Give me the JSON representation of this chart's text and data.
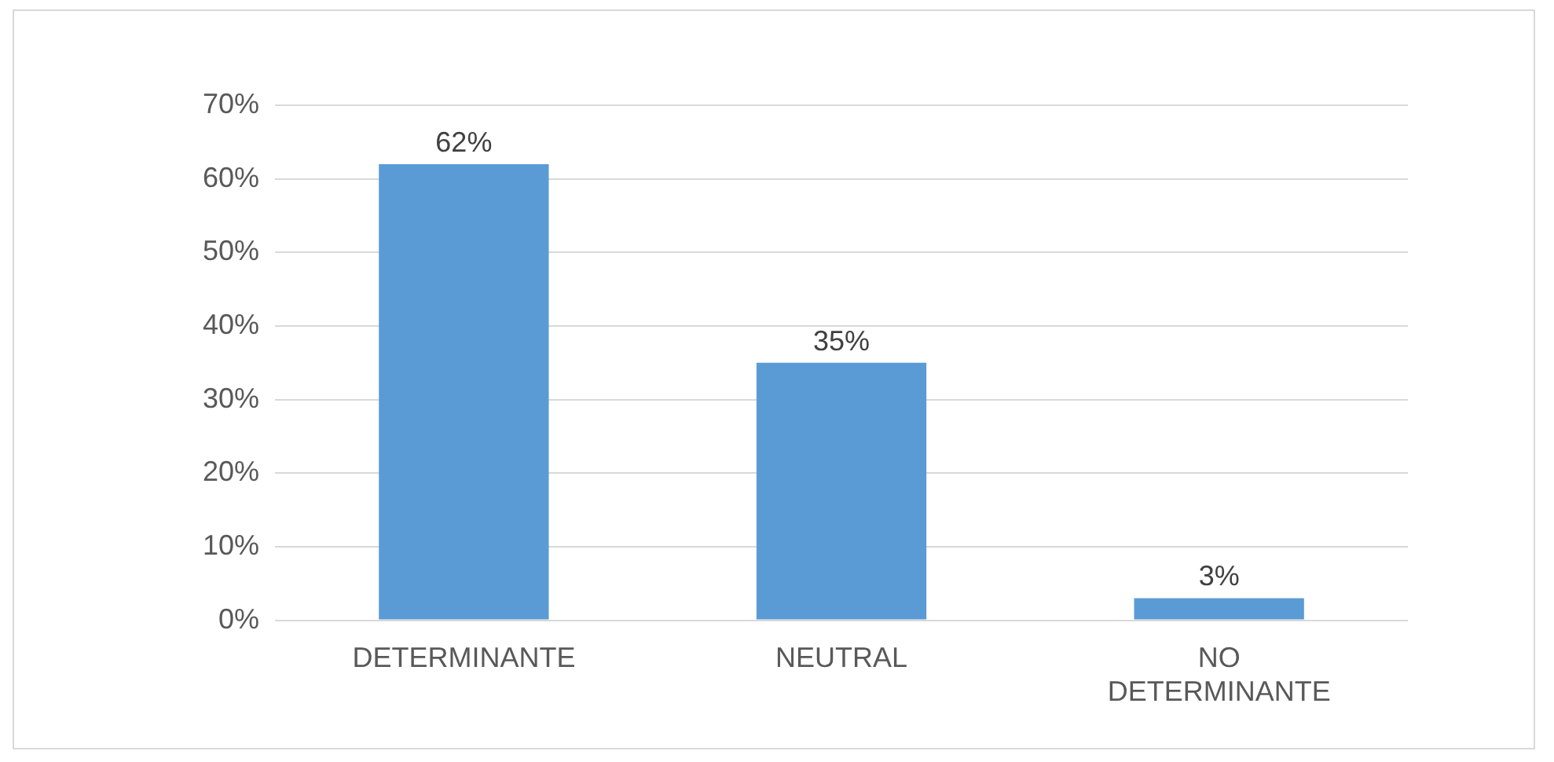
{
  "chart_data": {
    "type": "bar",
    "categories": [
      "DETERMINANTE",
      "NEUTRAL",
      "NO DETERMINANTE"
    ],
    "values": [
      62,
      35,
      3
    ],
    "value_labels": [
      "62%",
      "35%",
      "3%"
    ],
    "color": "#5b9bd5",
    "ylim": [
      0,
      70
    ],
    "yticks": [
      {
        "value": 0,
        "label": "0%"
      },
      {
        "value": 10,
        "label": "10%"
      },
      {
        "value": 20,
        "label": "20%"
      },
      {
        "value": 30,
        "label": "30%"
      },
      {
        "value": 40,
        "label": "40%"
      },
      {
        "value": 50,
        "label": "50%"
      },
      {
        "value": 60,
        "label": "60%"
      },
      {
        "value": 70,
        "label": "70%"
      }
    ],
    "grid": "y",
    "legend": false
  }
}
